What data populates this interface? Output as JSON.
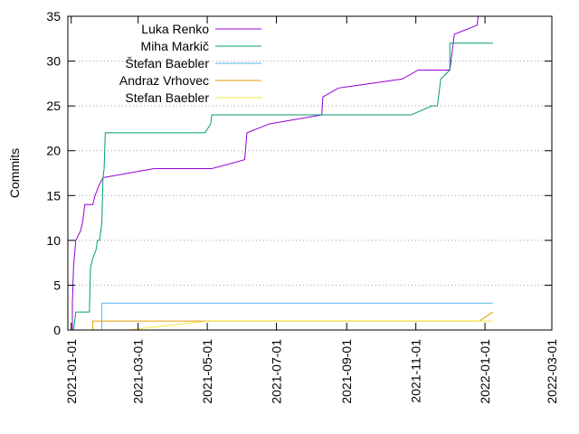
{
  "chart_data": {
    "type": "line",
    "title": "",
    "xlabel": "",
    "ylabel": "Commits",
    "ylim": [
      0,
      35
    ],
    "xlim": [
      "2020-12-29",
      "2022-03-01"
    ],
    "grid": "horizontal dotted",
    "legend_position": "top-left",
    "x_ticks": [
      "2021-01-01",
      "2021-03-01",
      "2021-05-01",
      "2021-07-01",
      "2021-09-01",
      "2021-11-01",
      "2022-01-01",
      "2022-03-01"
    ],
    "y_ticks": [
      "0",
      "5",
      "10",
      "15",
      "20",
      "25",
      "30",
      "35"
    ],
    "series": [
      {
        "name": "Luka Renko",
        "color": "#9400d3",
        "points": [
          [
            "2021-01-02",
            0
          ],
          [
            "2021-01-02",
            3
          ],
          [
            "2021-01-03",
            7
          ],
          [
            "2021-01-05",
            10
          ],
          [
            "2021-01-09",
            11
          ],
          [
            "2021-01-11",
            12
          ],
          [
            "2021-01-13",
            14
          ],
          [
            "2021-01-20",
            14
          ],
          [
            "2021-01-22",
            15
          ],
          [
            "2021-01-25",
            16
          ],
          [
            "2021-01-29",
            17
          ],
          [
            "2021-03-15",
            18
          ],
          [
            "2021-05-05",
            18
          ],
          [
            "2021-06-03",
            19
          ],
          [
            "2021-06-05",
            22
          ],
          [
            "2021-06-25",
            23
          ],
          [
            "2021-08-10",
            24
          ],
          [
            "2021-08-11",
            26
          ],
          [
            "2021-08-25",
            27
          ],
          [
            "2021-10-20",
            28
          ],
          [
            "2021-11-03",
            29
          ],
          [
            "2021-12-01",
            29
          ],
          [
            "2021-12-05",
            33
          ],
          [
            "2021-12-25",
            34
          ],
          [
            "2021-12-26",
            35
          ]
        ]
      },
      {
        "name": "Miha Markič",
        "color": "#009e73",
        "points": [
          [
            "2021-01-03",
            0
          ],
          [
            "2021-01-05",
            2
          ],
          [
            "2021-01-17",
            2
          ],
          [
            "2021-01-18",
            7
          ],
          [
            "2021-01-20",
            8
          ],
          [
            "2021-01-23",
            9
          ],
          [
            "2021-01-24",
            10
          ],
          [
            "2021-01-26",
            10
          ],
          [
            "2021-01-28",
            12
          ],
          [
            "2021-01-29",
            17
          ],
          [
            "2021-01-30",
            18
          ],
          [
            "2021-01-31",
            22
          ],
          [
            "2021-04-29",
            22
          ],
          [
            "2021-05-04",
            23
          ],
          [
            "2021-05-05",
            24
          ],
          [
            "2021-10-28",
            24
          ],
          [
            "2021-11-15",
            25
          ],
          [
            "2021-11-20",
            25
          ],
          [
            "2021-11-23",
            28
          ],
          [
            "2021-12-01",
            29
          ],
          [
            "2021-12-01",
            32
          ],
          [
            "2022-01-08",
            32
          ]
        ]
      },
      {
        "name": "Štefan Baebler",
        "color": "#56b4e9",
        "points": [
          [
            "2021-01-28",
            0
          ],
          [
            "2021-01-28",
            3
          ],
          [
            "2022-01-08",
            3
          ]
        ]
      },
      {
        "name": "Andraz Vrhovec",
        "color": "#e69f00",
        "points": [
          [
            "2021-01-20",
            0
          ],
          [
            "2021-01-20",
            1
          ],
          [
            "2021-12-27",
            1
          ],
          [
            "2022-01-08",
            2
          ]
        ]
      },
      {
        "name": "Stefan Baebler",
        "color": "#f0e442",
        "points": [
          [
            "2021-02-20",
            0
          ],
          [
            "2021-05-01",
            1
          ],
          [
            "2022-01-08",
            1
          ]
        ]
      }
    ]
  }
}
